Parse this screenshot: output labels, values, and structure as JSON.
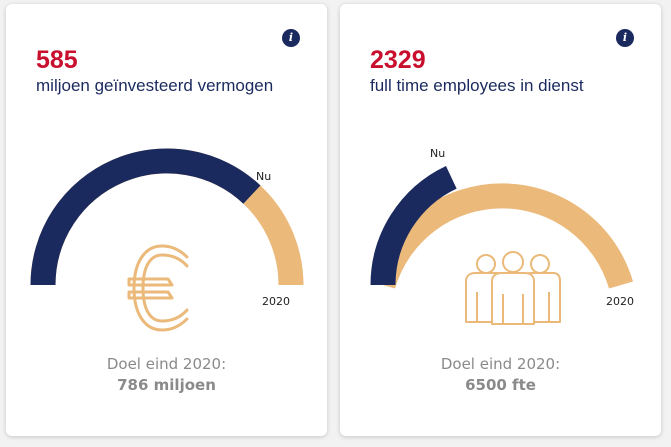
{
  "colors": {
    "navy": "#1b2a5e",
    "gold": "#ebb979",
    "red": "#c8102e",
    "grey": "#8a8a8a"
  },
  "cards": [
    {
      "value": "585",
      "label": "miljoen geïnvesteerd vermogen",
      "info_icon": "info-icon",
      "gauge": {
        "current_label": "Nu",
        "end_label": "2020",
        "progress_fraction": 0.74
      },
      "center_icon": "euro-icon",
      "goal_label": "Doel eind 2020:",
      "goal_value": "786 miljoen"
    },
    {
      "value": "2329",
      "label": "full time employees in dienst",
      "info_icon": "info-icon",
      "gauge": {
        "current_label": "Nu",
        "end_label": "2020",
        "progress_fraction": 0.36
      },
      "center_icon": "people-icon",
      "goal_label": "Doel eind 2020:",
      "goal_value": "6500 fte"
    }
  ]
}
